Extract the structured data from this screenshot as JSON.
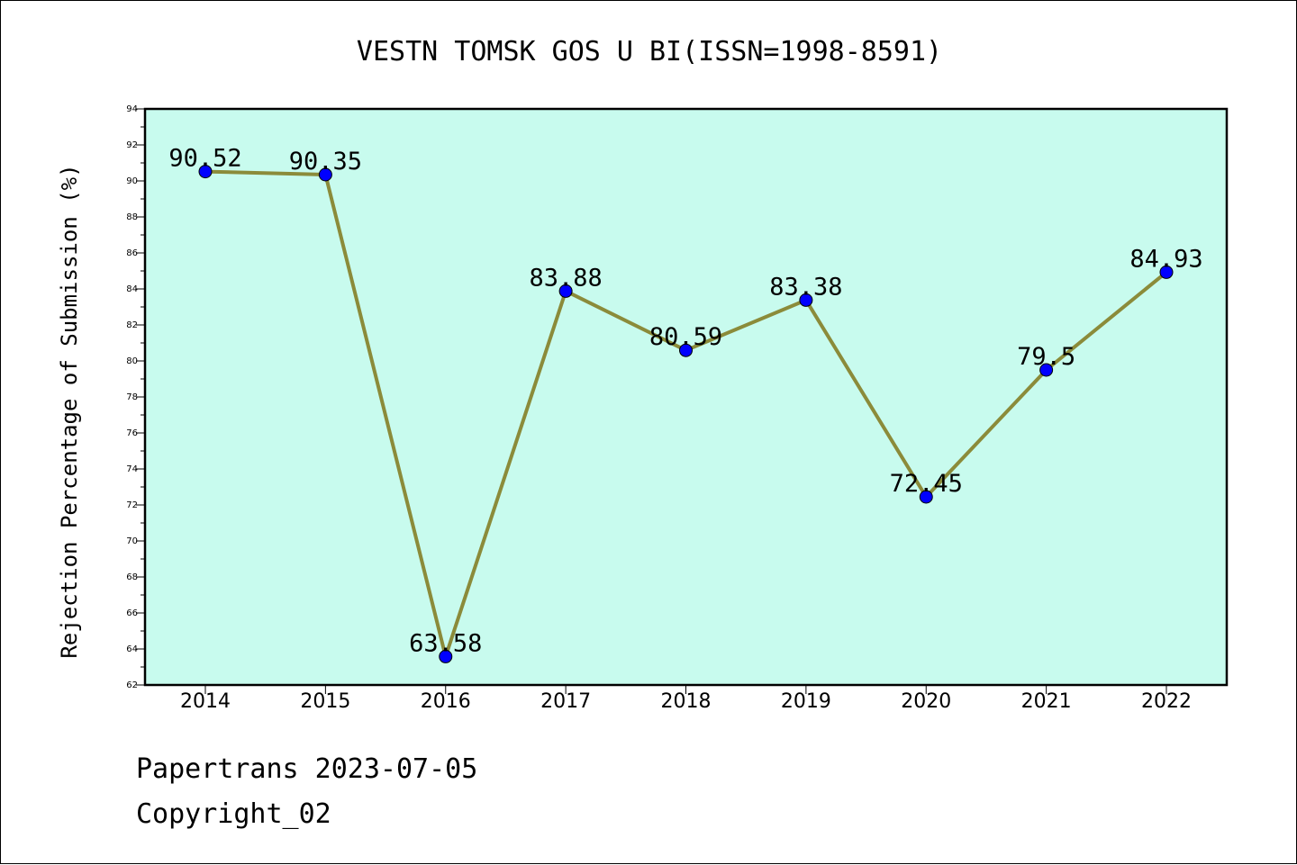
{
  "chart_data": {
    "type": "line",
    "title": "VESTN TOMSK GOS U BI(ISSN=1998-8591)",
    "ylabel": "Rejection Percentage of Submission (%)",
    "xlabel": "",
    "categories": [
      "2014",
      "2015",
      "2016",
      "2017",
      "2018",
      "2019",
      "2020",
      "2021",
      "2022"
    ],
    "values": [
      90.52,
      90.35,
      63.58,
      83.88,
      80.59,
      83.38,
      72.45,
      79.5,
      84.93
    ],
    "data_labels": [
      "90.52",
      "90.35",
      "63.58",
      "83.88",
      "80.59",
      "83.38",
      "72.45",
      "79.5",
      "84.93"
    ],
    "ylim": [
      62,
      94
    ],
    "y_major_ticks": [
      62,
      64,
      66,
      68,
      70,
      72,
      74,
      76,
      78,
      80,
      82,
      84,
      86,
      88,
      90,
      92,
      94
    ],
    "grid": false,
    "colors": {
      "plot_background": "#c8fbee",
      "line": "#8b8b3a",
      "marker": "#0000ff"
    }
  },
  "footer": {
    "line1": "Papertrans 2023-07-05",
    "line2": "Copyright_02"
  }
}
